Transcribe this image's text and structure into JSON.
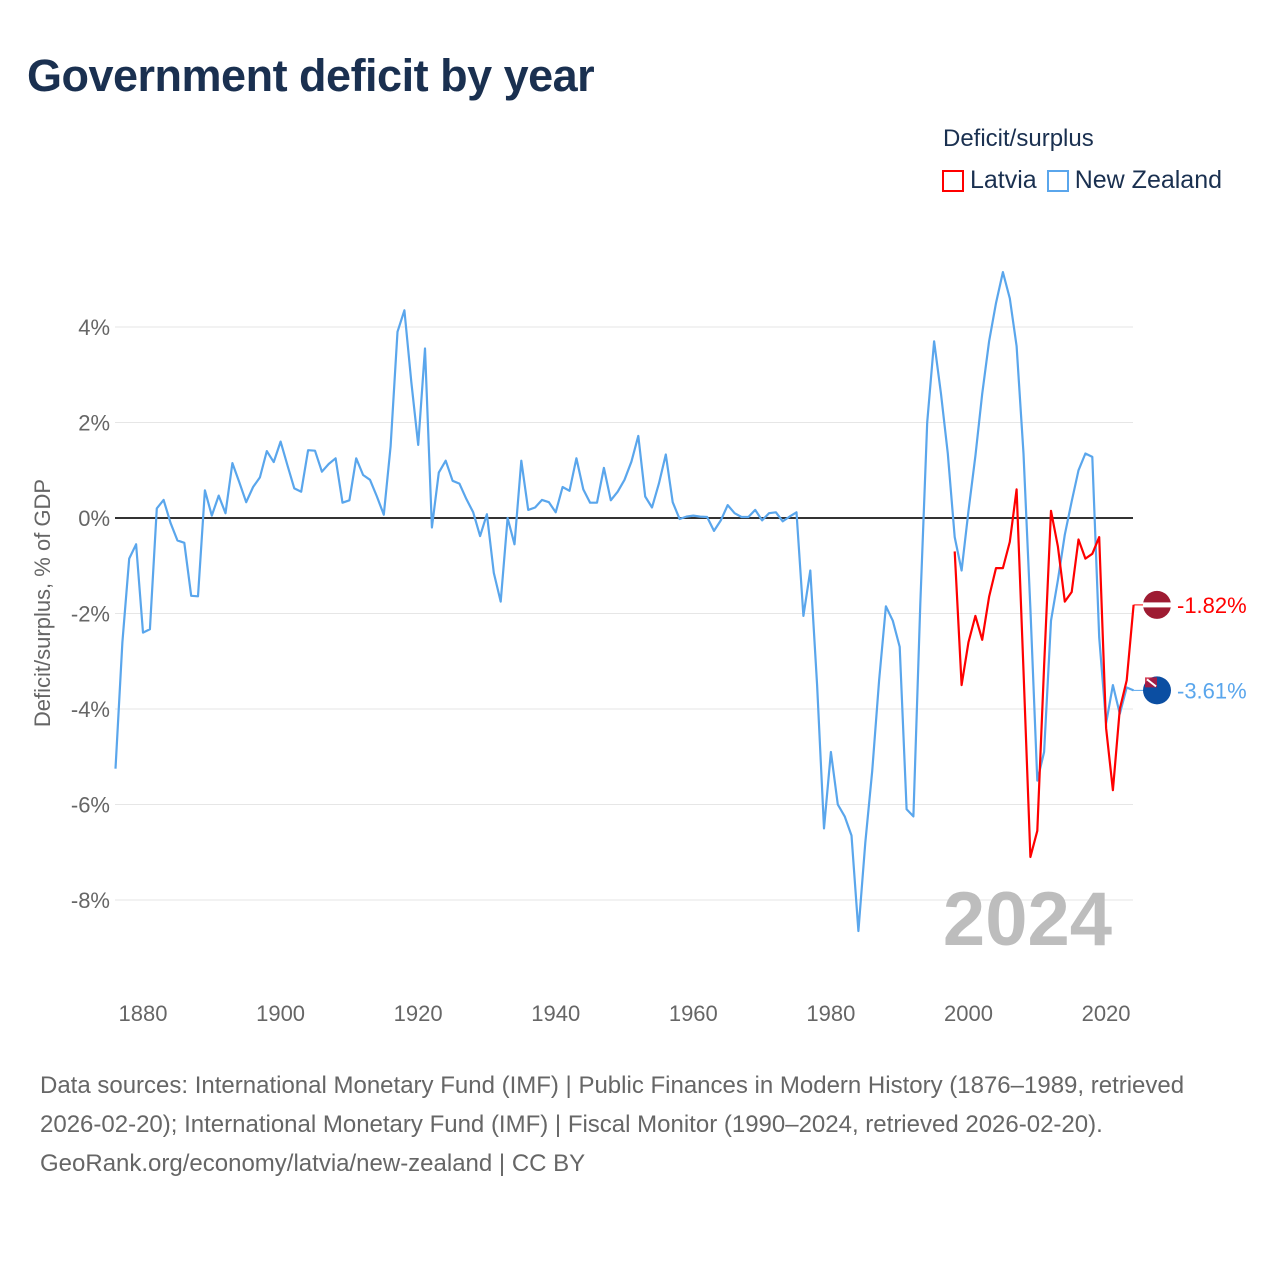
{
  "title": "Government deficit by year",
  "legend": {
    "title": "Deficit/surplus",
    "items": [
      {
        "name": "Latvia",
        "color": "#ff0000"
      },
      {
        "name": "New Zealand",
        "color": "#5aa6ec"
      }
    ]
  },
  "footer": {
    "sources": "Data sources: International Monetary Fund (IMF) | Public Finances in Modern History (1876–1989, retrieved 2026-02-20); International Monetary Fund (IMF) | Fiscal Monitor (1990–2024, retrieved 2026-02-20).",
    "attribution": "GeoRank.org/economy/latvia/new-zealand | CC BY"
  },
  "chart_data": {
    "type": "line",
    "title": "Government deficit by year",
    "xlabel": "",
    "ylabel": "Deficit/surplus, % of GDP",
    "year_label": "2024",
    "xlim": [
      1876,
      2024
    ],
    "ylim": [
      -10,
      5.5
    ],
    "x_ticks": [
      1880,
      1900,
      1920,
      1940,
      1960,
      1980,
      2000,
      2020
    ],
    "y_ticks": [
      4,
      2,
      0,
      -2,
      -4,
      -6,
      -8
    ],
    "y_tick_labels": [
      "4%",
      "2%",
      "0%",
      "-2%",
      "-4%",
      "-6%",
      "-8%"
    ],
    "grid": true,
    "legend_position": "top-right",
    "series": [
      {
        "name": "Latvia",
        "color": "#ff0000",
        "start_year": 1998,
        "end_label": "-1.82%",
        "flag": "latvia",
        "values": [
          -0.7,
          -3.5,
          -2.6,
          -2.05,
          -2.55,
          -1.65,
          -1.05,
          -1.05,
          -0.5,
          0.6,
          -3.2,
          -7.1,
          -6.55,
          -3.1,
          0.15,
          -0.6,
          -1.75,
          -1.55,
          -0.45,
          -0.85,
          -0.75,
          -0.4,
          -4.4,
          -5.7,
          -4.0,
          -3.4,
          -1.82
        ]
      },
      {
        "name": "New Zealand",
        "color": "#5aa6ec",
        "start_year": 1876,
        "end_label": "-3.61%",
        "flag": "new-zealand",
        "values": [
          -5.25,
          -2.6,
          -0.85,
          -0.55,
          -2.4,
          -2.33,
          0.2,
          0.38,
          -0.1,
          -0.47,
          -0.52,
          -1.63,
          -1.64,
          0.58,
          0.05,
          0.47,
          0.1,
          1.15,
          0.75,
          0.33,
          0.65,
          0.85,
          1.4,
          1.17,
          1.6,
          1.1,
          0.62,
          0.55,
          1.42,
          1.41,
          0.97,
          1.13,
          1.25,
          0.32,
          0.37,
          1.25,
          0.9,
          0.8,
          0.45,
          0.07,
          1.5,
          3.9,
          4.35,
          2.85,
          1.53,
          3.55,
          -0.2,
          0.95,
          1.2,
          0.78,
          0.72,
          0.4,
          0.12,
          -0.38,
          0.08,
          -1.15,
          -1.75,
          0.0,
          -0.55,
          1.2,
          0.17,
          0.22,
          0.38,
          0.33,
          0.12,
          0.65,
          0.57,
          1.25,
          0.6,
          0.32,
          0.32,
          1.05,
          0.37,
          0.55,
          0.8,
          1.18,
          1.72,
          0.45,
          0.22,
          0.72,
          1.33,
          0.33,
          -0.02,
          0.03,
          0.05,
          0.03,
          0.02,
          -0.27,
          -0.05,
          0.27,
          0.1,
          0.02,
          0.02,
          0.17,
          -0.05,
          0.1,
          0.12,
          -0.07,
          0.03,
          0.12,
          -2.05,
          -1.1,
          -3.5,
          -6.5,
          -4.9,
          -6.0,
          -6.25,
          -6.65,
          -8.65,
          -6.8,
          -5.3,
          -3.4,
          -1.85,
          -2.15,
          -2.7,
          -6.1,
          -6.25,
          -1.8,
          2.0,
          3.7,
          2.6,
          1.35,
          -0.4,
          -1.1,
          0.15,
          1.3,
          2.6,
          3.7,
          4.5,
          5.15,
          4.6,
          3.6,
          1.35,
          -1.9,
          -5.5,
          -4.9,
          -2.15,
          -1.3,
          -0.35,
          0.35,
          1.0,
          1.35,
          1.28,
          -2.5,
          -4.3,
          -3.5,
          -4.1,
          -3.55,
          -3.61
        ]
      }
    ]
  }
}
